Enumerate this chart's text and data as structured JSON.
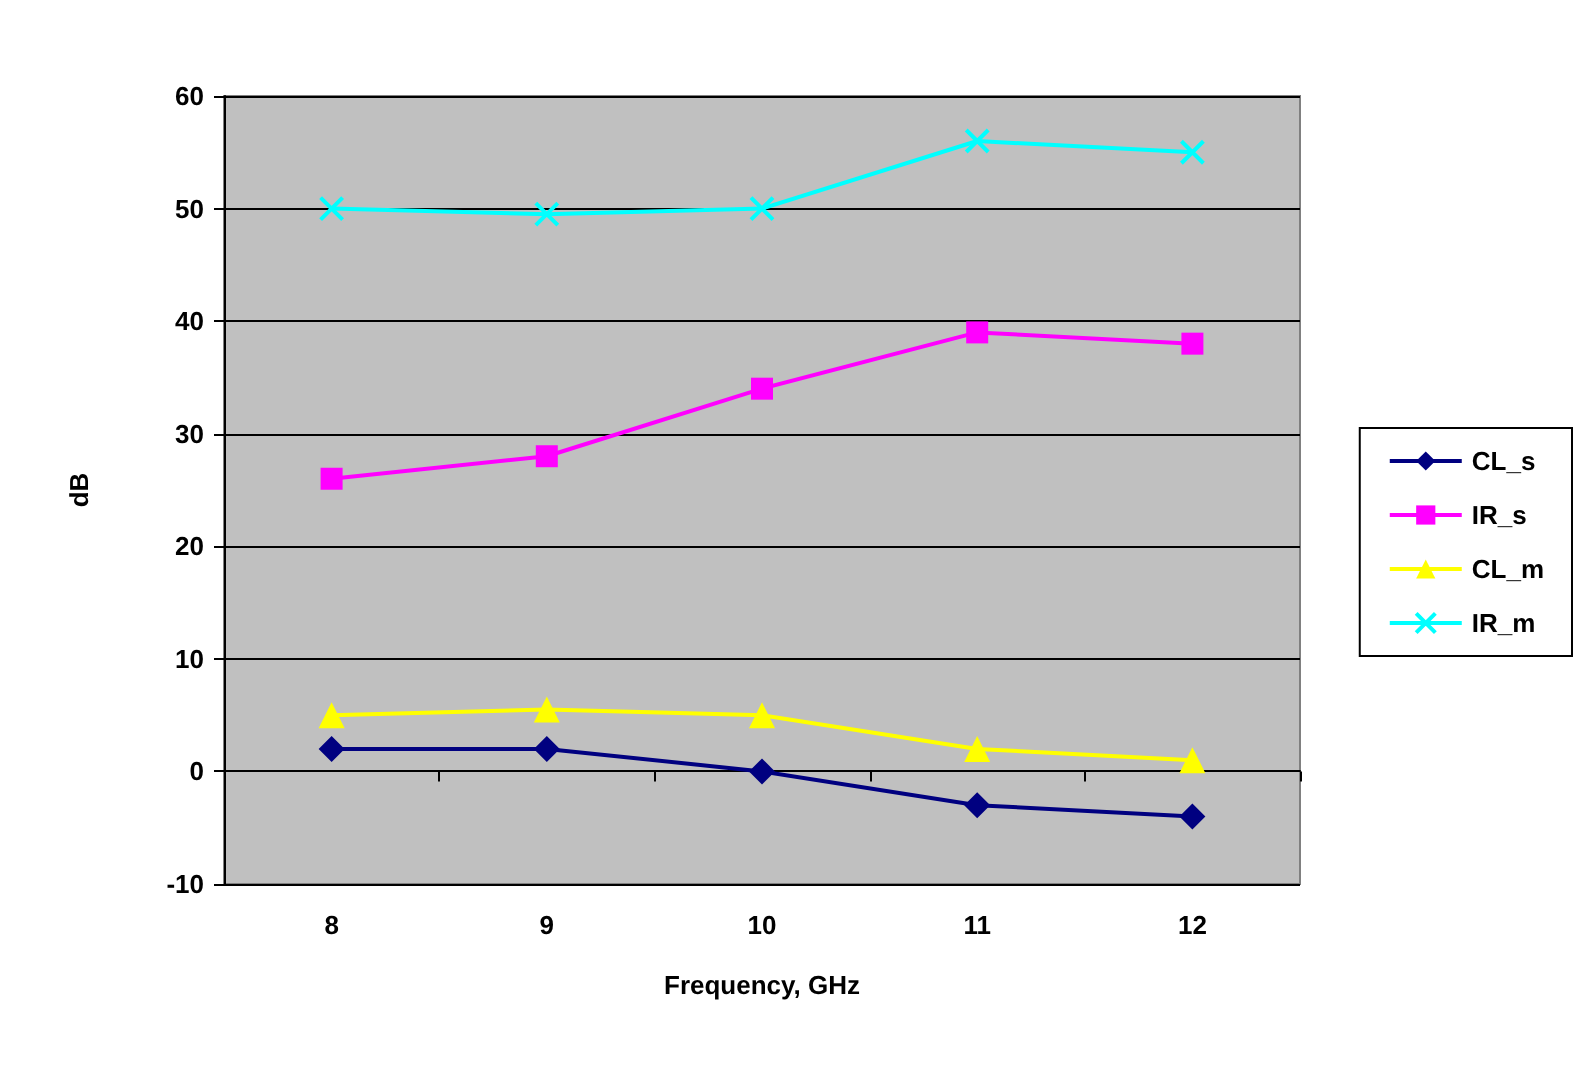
{
  "chart_data": {
    "type": "line",
    "xlabel": "Frequency, GHz",
    "ylabel": "dB",
    "categories": [
      "8",
      "9",
      "10",
      "11",
      "12"
    ],
    "ylim": [
      -10,
      60
    ],
    "yticks": [
      -10,
      0,
      10,
      20,
      30,
      40,
      50,
      60
    ],
    "grid": "y",
    "legend": "right",
    "line_style": "solid",
    "series": [
      {
        "name": "CL_s",
        "color": "#000080",
        "marker": "diamond",
        "values": [
          2,
          2,
          0,
          -3,
          -4
        ]
      },
      {
        "name": "IR_s",
        "color": "#ff00ff",
        "marker": "square",
        "values": [
          26,
          28,
          34,
          39,
          38
        ]
      },
      {
        "name": "CL_m",
        "color": "#ffff00",
        "marker": "triangle",
        "values": [
          5,
          5.5,
          5,
          2,
          1
        ]
      },
      {
        "name": "IR_m",
        "color": "#00ffff",
        "marker": "cross",
        "values": [
          50,
          49.5,
          50,
          56,
          55
        ]
      }
    ]
  }
}
